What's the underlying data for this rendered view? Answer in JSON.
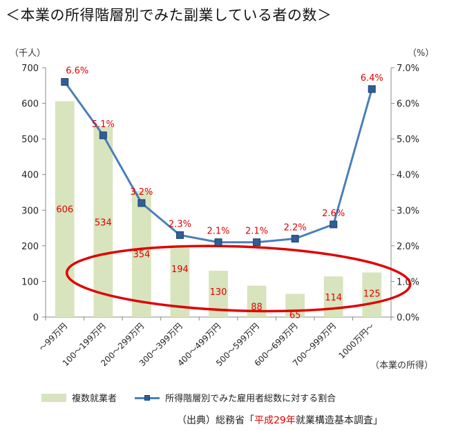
{
  "title": "＜本業の所得階層別でみた副業している者の数＞",
  "left_unit": "（千人）",
  "right_unit": "（%）",
  "x_caption": "（本業の所得）",
  "legend": {
    "bar_label": "複数就業者",
    "line_label": "所得階層別でみた雇用者総数に対する割合"
  },
  "source": {
    "prefix": "（出典）総務省「",
    "highlight": "平成29年",
    "suffix": "就業構造基本調査」"
  },
  "chart_data": {
    "type": "bar",
    "categories": [
      "～99万円",
      "100～199万円",
      "200～299万円",
      "300～399万円",
      "400～499万円",
      "500～599万円",
      "600～699万円",
      "700～999万円",
      "1000万円～"
    ],
    "series": [
      {
        "name": "複数就業者",
        "type": "bar",
        "axis": "left",
        "values": [
          606,
          534,
          354,
          194,
          130,
          88,
          65,
          114,
          125
        ],
        "labels": [
          "606",
          "534",
          "354",
          "194",
          "130",
          "88",
          "65",
          "114",
          "125"
        ]
      },
      {
        "name": "所得階層別でみた雇用者総数に対する割合",
        "type": "line",
        "axis": "right",
        "values": [
          6.6,
          5.1,
          3.2,
          2.3,
          2.1,
          2.1,
          2.2,
          2.6,
          6.4
        ],
        "labels": [
          "6.6%",
          "5.1%",
          "3.2%",
          "2.3%",
          "2.1%",
          "2.1%",
          "2.2%",
          "2.6%",
          "6.4%"
        ]
      }
    ],
    "y_left": {
      "min": 0,
      "max": 700,
      "step": 100,
      "ticks": [
        "0",
        "100",
        "200",
        "300",
        "400",
        "500",
        "600",
        "700"
      ]
    },
    "y_right": {
      "min": 0,
      "max": 7,
      "step": 1,
      "ticks": [
        "0.0%",
        "1.0%",
        "2.0%",
        "3.0%",
        "4.0%",
        "5.0%",
        "6.0%",
        "7.0%"
      ]
    },
    "annotation": "red ellipse around categories 300～399万円 to 1000万円～ (lower-income-share region)",
    "colors": {
      "bar": "#d7e4bd",
      "line": "#4a7ebb",
      "marker": "#2f5f97",
      "label": "#e00000",
      "ellipse": "#e00000"
    },
    "grid": false,
    "legend_position": "bottom"
  }
}
